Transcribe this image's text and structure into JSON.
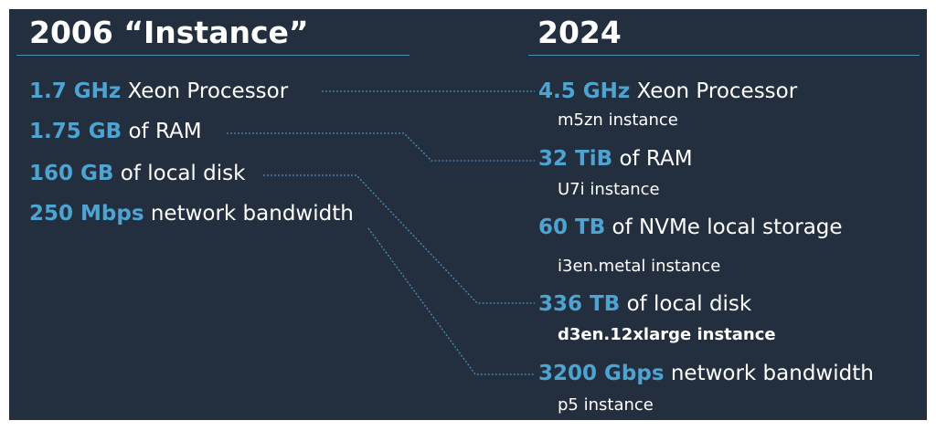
{
  "colors": {
    "background": "#232f3e",
    "accent": "#4fa3d1",
    "text": "#ffffff",
    "connector": "#4a90b8"
  },
  "left": {
    "heading": "2006 “Instance”",
    "items": [
      {
        "value": "1.7 GHz",
        "label": "Xeon Processor"
      },
      {
        "value": "1.75 GB",
        "label": "of RAM"
      },
      {
        "value": "160 GB",
        "label": "of local disk"
      },
      {
        "value": "250 Mbps",
        "label": "network bandwidth"
      }
    ]
  },
  "right": {
    "heading": "2024",
    "items": [
      {
        "value": "4.5 GHz",
        "label": "Xeon Processor",
        "instance": "m5zn instance"
      },
      {
        "value": "32 TiB",
        "label": "of RAM",
        "instance": "U7i instance"
      },
      {
        "value": "60 TB",
        "label": "of NVMe local storage",
        "instance": "i3en.metal instance"
      },
      {
        "value": "336 TB",
        "label": "of local disk",
        "instance": "d3en.12xlarge instance"
      },
      {
        "value": "3200 Gbps",
        "label": "network bandwidth",
        "instance": "p5 instance"
      }
    ]
  }
}
